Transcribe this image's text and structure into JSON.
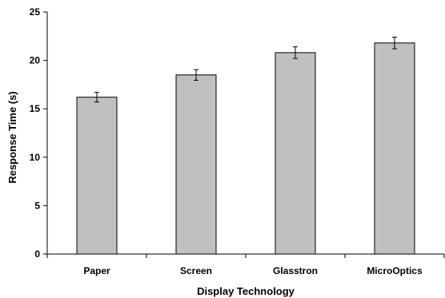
{
  "chart_data": {
    "type": "bar",
    "categories": [
      "Paper",
      "Screen",
      "Glasstron",
      "MicroOptics"
    ],
    "values": [
      16.2,
      18.5,
      20.8,
      21.8
    ],
    "error": [
      0.5,
      0.55,
      0.6,
      0.6
    ],
    "xlabel": "Display Technology",
    "ylabel": "Response Time (s)",
    "ylim": [
      0,
      25
    ],
    "yticks": [
      "0",
      "5",
      "10",
      "15",
      "20",
      "25"
    ],
    "grid": false,
    "bar_color": "#c0c0c0",
    "bar_edge_color": "#000000"
  }
}
